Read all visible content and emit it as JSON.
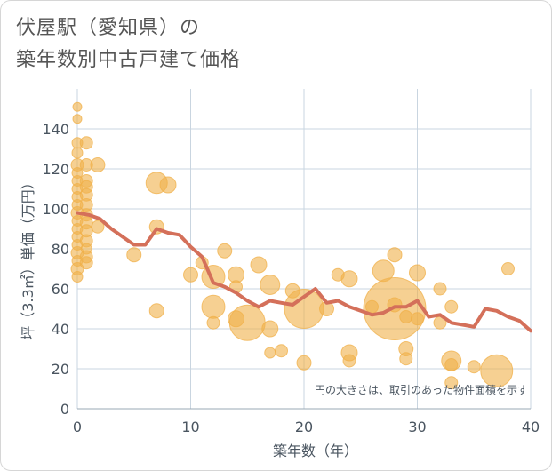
{
  "title": {
    "line1": "伏屋駅（愛知県）の",
    "line2": "築年数別中古戸建て価格"
  },
  "colors": {
    "bubble": "#f0b04a",
    "line": "#d4705a",
    "grid": "#c9d5e0",
    "text": "#4a5560"
  },
  "chart_data": {
    "type": "scatter",
    "title": "伏屋駅（愛知県）の 築年数別中古戸建て価格",
    "xlabel": "築年数（年）",
    "ylabel": "坪（3.3㎡）単価（万円）",
    "xlim": [
      0,
      40
    ],
    "ylim": [
      0,
      160
    ],
    "xticks": [
      "0",
      "10",
      "20",
      "30",
      "40"
    ],
    "yticks": [
      "0",
      "20",
      "40",
      "60",
      "80",
      "100",
      "120",
      "140"
    ],
    "annotation": "円の大きさは、取引のあった物件面積を示す",
    "bubbles": [
      {
        "x": 0,
        "y": 151,
        "s": 5
      },
      {
        "x": 0,
        "y": 145,
        "s": 5
      },
      {
        "x": 0,
        "y": 133,
        "s": 6
      },
      {
        "x": 0,
        "y": 128,
        "s": 6
      },
      {
        "x": 0,
        "y": 122,
        "s": 7
      },
      {
        "x": 0,
        "y": 118,
        "s": 6
      },
      {
        "x": 0,
        "y": 114,
        "s": 6
      },
      {
        "x": 0,
        "y": 110,
        "s": 6
      },
      {
        "x": 0,
        "y": 106,
        "s": 6
      },
      {
        "x": 0,
        "y": 102,
        "s": 6
      },
      {
        "x": 0,
        "y": 98,
        "s": 7
      },
      {
        "x": 0,
        "y": 94,
        "s": 6
      },
      {
        "x": 0,
        "y": 90,
        "s": 6
      },
      {
        "x": 0,
        "y": 86,
        "s": 6
      },
      {
        "x": 0,
        "y": 82,
        "s": 6
      },
      {
        "x": 0,
        "y": 78,
        "s": 7
      },
      {
        "x": 0,
        "y": 74,
        "s": 6
      },
      {
        "x": 0,
        "y": 70,
        "s": 7
      },
      {
        "x": 0,
        "y": 66,
        "s": 6
      },
      {
        "x": 0.8,
        "y": 133,
        "s": 7
      },
      {
        "x": 0.8,
        "y": 122,
        "s": 7
      },
      {
        "x": 0.8,
        "y": 114,
        "s": 7
      },
      {
        "x": 0.8,
        "y": 111,
        "s": 7
      },
      {
        "x": 0.8,
        "y": 107,
        "s": 7
      },
      {
        "x": 0.8,
        "y": 102,
        "s": 7
      },
      {
        "x": 0.8,
        "y": 97,
        "s": 7
      },
      {
        "x": 0.8,
        "y": 93,
        "s": 7
      },
      {
        "x": 0.8,
        "y": 89,
        "s": 7
      },
      {
        "x": 0.8,
        "y": 84,
        "s": 7
      },
      {
        "x": 0.8,
        "y": 80,
        "s": 6
      },
      {
        "x": 0.8,
        "y": 76,
        "s": 7
      },
      {
        "x": 0.8,
        "y": 73,
        "s": 7
      },
      {
        "x": 1.8,
        "y": 122,
        "s": 8
      },
      {
        "x": 1.8,
        "y": 91,
        "s": 7
      },
      {
        "x": 5,
        "y": 77,
        "s": 8
      },
      {
        "x": 7,
        "y": 113,
        "s": 12
      },
      {
        "x": 8,
        "y": 112,
        "s": 9
      },
      {
        "x": 7,
        "y": 91,
        "s": 8
      },
      {
        "x": 7,
        "y": 49,
        "s": 8
      },
      {
        "x": 10,
        "y": 67,
        "s": 8
      },
      {
        "x": 11,
        "y": 73,
        "s": 7
      },
      {
        "x": 12,
        "y": 66,
        "s": 13
      },
      {
        "x": 12,
        "y": 51,
        "s": 13
      },
      {
        "x": 12,
        "y": 43,
        "s": 7
      },
      {
        "x": 13,
        "y": 79,
        "s": 8
      },
      {
        "x": 14,
        "y": 67,
        "s": 9
      },
      {
        "x": 14,
        "y": 61,
        "s": 7
      },
      {
        "x": 14,
        "y": 45,
        "s": 9
      },
      {
        "x": 15,
        "y": 43,
        "s": 20
      },
      {
        "x": 16,
        "y": 72,
        "s": 9
      },
      {
        "x": 17,
        "y": 62,
        "s": 11
      },
      {
        "x": 17,
        "y": 40,
        "s": 9
      },
      {
        "x": 17,
        "y": 28,
        "s": 6
      },
      {
        "x": 18,
        "y": 29,
        "s": 7
      },
      {
        "x": 19,
        "y": 59,
        "s": 8
      },
      {
        "x": 20,
        "y": 50,
        "s": 22
      },
      {
        "x": 20,
        "y": 23,
        "s": 8
      },
      {
        "x": 22,
        "y": 50,
        "s": 8
      },
      {
        "x": 23,
        "y": 67,
        "s": 7
      },
      {
        "x": 24,
        "y": 65,
        "s": 9
      },
      {
        "x": 24,
        "y": 28,
        "s": 9
      },
      {
        "x": 24,
        "y": 24,
        "s": 7
      },
      {
        "x": 26,
        "y": 51,
        "s": 7
      },
      {
        "x": 27,
        "y": 69,
        "s": 12
      },
      {
        "x": 28,
        "y": 77,
        "s": 8
      },
      {
        "x": 28,
        "y": 52,
        "s": 8
      },
      {
        "x": 28,
        "y": 50,
        "s": 35
      },
      {
        "x": 29,
        "y": 30,
        "s": 8
      },
      {
        "x": 29,
        "y": 25,
        "s": 7
      },
      {
        "x": 29,
        "y": 46,
        "s": 7
      },
      {
        "x": 30,
        "y": 68,
        "s": 9
      },
      {
        "x": 30,
        "y": 45,
        "s": 7
      },
      {
        "x": 32,
        "y": 60,
        "s": 7
      },
      {
        "x": 32,
        "y": 43,
        "s": 7
      },
      {
        "x": 33,
        "y": 51,
        "s": 7
      },
      {
        "x": 33,
        "y": 24,
        "s": 11
      },
      {
        "x": 33,
        "y": 22,
        "s": 7
      },
      {
        "x": 33,
        "y": 13,
        "s": 7
      },
      {
        "x": 35,
        "y": 21,
        "s": 7
      },
      {
        "x": 37,
        "y": 19,
        "s": 18
      },
      {
        "x": 38,
        "y": 70,
        "s": 7
      }
    ],
    "trend_line": {
      "x": [
        0,
        1,
        2,
        3,
        4,
        5,
        6,
        7,
        8,
        9,
        10,
        11,
        12,
        13,
        14,
        15,
        16,
        17,
        18,
        19,
        20,
        21,
        22,
        23,
        24,
        25,
        26,
        27,
        28,
        29,
        30,
        31,
        32,
        33,
        34,
        35,
        36,
        37,
        38,
        39,
        40
      ],
      "y": [
        98,
        97,
        95,
        90,
        86,
        82,
        82,
        90,
        88,
        87,
        81,
        76,
        63,
        61,
        58,
        54,
        51,
        54,
        53,
        52,
        56,
        60,
        53,
        54,
        51,
        49,
        47,
        48,
        51,
        51,
        54,
        46,
        47,
        43,
        42,
        41,
        50,
        49,
        46,
        44,
        39
      ]
    }
  }
}
